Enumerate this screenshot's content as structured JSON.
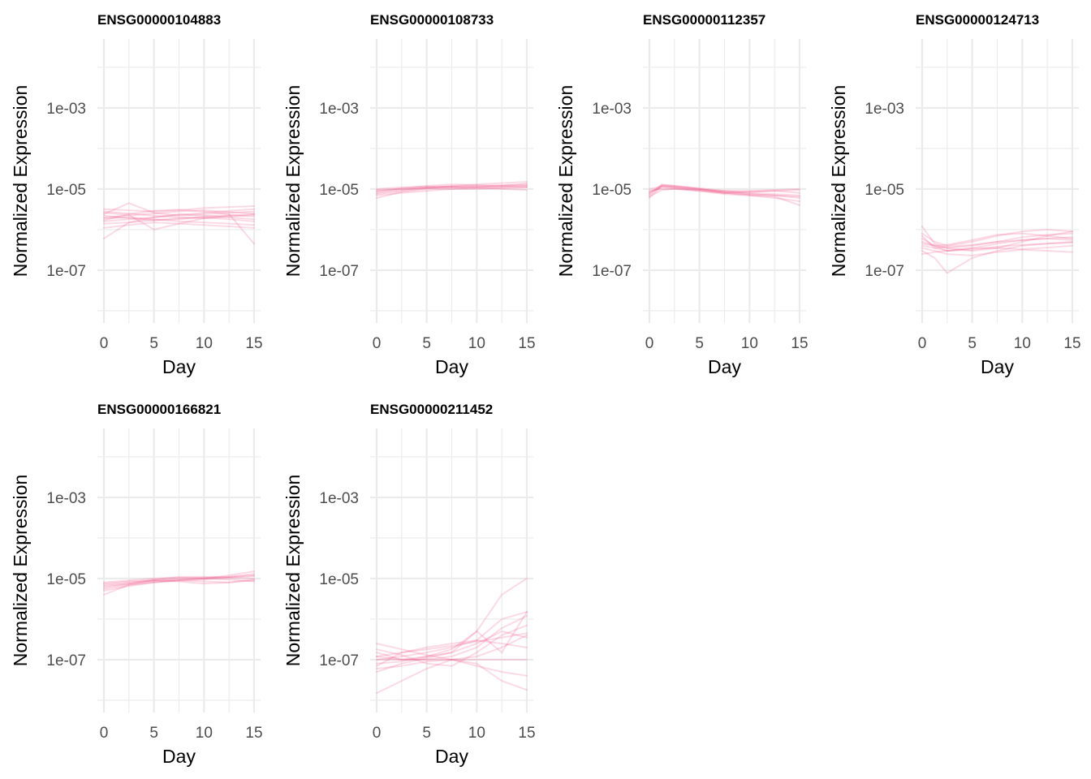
{
  "style": {
    "line_color": "#f0487f",
    "line_opacity": 0.2
  },
  "chart_data": [
    {
      "type": "line",
      "title": "ENSG00000104883",
      "xlabel": "Day",
      "ylabel": "Normalized Expression",
      "x_scale": "linear",
      "y_scale": "log10",
      "xlim": [
        0,
        15
      ],
      "ylim": [
        5e-09,
        0.05
      ],
      "x_ticks": [
        0,
        5,
        10,
        15
      ],
      "x_tick_labels": [
        "0",
        "5",
        "10",
        "15"
      ],
      "y_ticks": [
        1e-07,
        1e-05,
        0.001
      ],
      "y_tick_labels": [
        "1e-07",
        "1e-05",
        "1e-03"
      ],
      "x": [
        0,
        2.5,
        5,
        7.5,
        10,
        12.5,
        15
      ],
      "series": [
        {
          "values": [
            2e-06,
            2.2e-06,
            2.5e-06,
            2.8e-06,
            3e-06,
            2.7e-06,
            2.5e-06
          ]
        },
        {
          "values": [
            1.6e-06,
            1.8e-06,
            2e-06,
            2.3e-06,
            2.6e-06,
            2.9e-06,
            3.2e-06
          ]
        },
        {
          "values": [
            2.8e-06,
            2.5e-06,
            2.2e-06,
            2e-06,
            1.9e-06,
            2.1e-06,
            2.3e-06
          ]
        },
        {
          "values": [
            1.4e-06,
            1.5e-06,
            1.7e-06,
            1.9e-06,
            2e-06,
            1.8e-06,
            1.6e-06
          ]
        },
        {
          "values": [
            2.4e-06,
            4.5e-06,
            2.6e-06,
            2.2e-06,
            2.4e-06,
            2.6e-06,
            2.8e-06
          ]
        },
        {
          "values": [
            1.1e-06,
            1.3e-06,
            1.5e-06,
            1.4e-06,
            1.3e-06,
            1.2e-06,
            1.1e-06
          ]
        },
        {
          "values": [
            3.2e-06,
            3e-06,
            2.8e-06,
            3e-06,
            3.4e-06,
            3.6e-06,
            3.8e-06
          ]
        },
        {
          "values": [
            1.9e-06,
            2e-06,
            1.8e-06,
            1.6e-06,
            1.5e-06,
            1.4e-06,
            1.3e-06
          ]
        },
        {
          "values": [
            2.2e-06,
            1.9e-06,
            1.7e-06,
            1.8e-06,
            2.1e-06,
            2.3e-06,
            2.1e-06
          ]
        },
        {
          "values": [
            6e-07,
            1.5e-06,
            2e-06,
            2.4e-06,
            2.2e-06,
            2e-06,
            1.8e-06
          ]
        },
        {
          "values": [
            1.7e-06,
            2.4e-06,
            2.9e-06,
            3.1e-06,
            2.8e-06,
            2.4e-06,
            4.5e-07
          ]
        },
        {
          "values": [
            2.6e-06,
            2.3e-06,
            1e-06,
            1.4e-06,
            1.9e-06,
            2.2e-06,
            2.4e-06
          ]
        }
      ]
    },
    {
      "type": "line",
      "title": "ENSG00000108733",
      "xlabel": "Day",
      "ylabel": "Normalized Expression",
      "x_scale": "linear",
      "y_scale": "log10",
      "xlim": [
        0,
        15
      ],
      "ylim": [
        5e-09,
        0.05
      ],
      "x_ticks": [
        0,
        5,
        10,
        15
      ],
      "x_tick_labels": [
        "0",
        "5",
        "10",
        "15"
      ],
      "y_ticks": [
        1e-07,
        1e-05,
        0.001
      ],
      "y_tick_labels": [
        "1e-07",
        "1e-05",
        "1e-03"
      ],
      "x": [
        0,
        2.5,
        5,
        7.5,
        10,
        12.5,
        15
      ],
      "series": [
        {
          "values": [
            8e-06,
            9.5e-06,
            1.1e-05,
            1.15e-05,
            1.2e-05,
            1.25e-05,
            1.3e-05
          ]
        },
        {
          "values": [
            6e-06,
            8.5e-06,
            1e-05,
            1.1e-05,
            1.15e-05,
            1.2e-05,
            1.2e-05
          ]
        },
        {
          "values": [
            9e-06,
            1e-05,
            1.05e-05,
            1e-05,
            1e-05,
            1.05e-05,
            1.1e-05
          ]
        },
        {
          "values": [
            7.5e-06,
            9e-06,
            1.05e-05,
            1.2e-05,
            1.3e-05,
            1.4e-05,
            1.5e-05
          ]
        },
        {
          "values": [
            8.5e-06,
            1.05e-05,
            1.2e-05,
            1.3e-05,
            1.25e-05,
            1.15e-05,
            1.1e-05
          ]
        },
        {
          "values": [
            1e-05,
            1.1e-05,
            1.15e-05,
            1.1e-05,
            1.05e-05,
            1.1e-05,
            1.2e-05
          ]
        },
        {
          "values": [
            7e-06,
            8e-06,
            9e-06,
            1e-05,
            1.1e-05,
            1.2e-05,
            1.35e-05
          ]
        },
        {
          "values": [
            9.5e-06,
            1e-05,
            1.1e-05,
            1.15e-05,
            1.1e-05,
            1e-05,
            9.5e-06
          ]
        }
      ]
    },
    {
      "type": "line",
      "title": "ENSG00000112357",
      "xlabel": "Day",
      "ylabel": "Normalized Expression",
      "x_scale": "linear",
      "y_scale": "log10",
      "xlim": [
        0,
        15
      ],
      "ylim": [
        5e-09,
        0.05
      ],
      "x_ticks": [
        0,
        5,
        10,
        15
      ],
      "x_tick_labels": [
        "0",
        "5",
        "10",
        "15"
      ],
      "y_ticks": [
        1e-07,
        1e-05,
        0.001
      ],
      "y_tick_labels": [
        "1e-07",
        "1e-05",
        "1e-03"
      ],
      "x": [
        0,
        1.25,
        2.5,
        5,
        7.5,
        10,
        12.5,
        15
      ],
      "series": [
        {
          "values": [
            6e-06,
            1.2e-05,
            1.1e-05,
            9.5e-06,
            8e-06,
            7.5e-06,
            7e-06,
            6.5e-06
          ]
        },
        {
          "values": [
            7.5e-06,
            1.3e-05,
            1.2e-05,
            1e-05,
            8.5e-06,
            8.5e-06,
            9e-06,
            9.5e-06
          ]
        },
        {
          "values": [
            8.5e-06,
            1.1e-05,
            1.05e-05,
            9e-06,
            7.5e-06,
            7e-06,
            6e-06,
            5e-06
          ]
        },
        {
          "values": [
            9e-06,
            1e-05,
            1e-05,
            9.5e-06,
            9e-06,
            9e-06,
            9.5e-06,
            1e-05
          ]
        },
        {
          "values": [
            7e-06,
            1.2e-05,
            1.15e-05,
            1e-05,
            8e-06,
            7e-06,
            6.5e-06,
            4e-06
          ]
        },
        {
          "values": [
            8e-06,
            1.25e-05,
            1.2e-05,
            1.05e-05,
            9e-06,
            8e-06,
            7.5e-06,
            7e-06
          ]
        },
        {
          "values": [
            6.5e-06,
            9.5e-06,
            1e-05,
            9e-06,
            8e-06,
            8.5e-06,
            9e-06,
            8e-06
          ]
        },
        {
          "values": [
            1e-05,
            1.15e-05,
            1.1e-05,
            1e-05,
            8.5e-06,
            7.5e-06,
            7e-06,
            6e-06
          ]
        }
      ]
    },
    {
      "type": "line",
      "title": "ENSG00000124713",
      "xlabel": "Day",
      "ylabel": "Normalized Expression",
      "x_scale": "linear",
      "y_scale": "log10",
      "xlim": [
        0,
        15
      ],
      "ylim": [
        5e-09,
        0.05
      ],
      "x_ticks": [
        0,
        5,
        10,
        15
      ],
      "x_tick_labels": [
        "0",
        "5",
        "10",
        "15"
      ],
      "y_ticks": [
        1e-07,
        1e-05,
        0.001
      ],
      "y_tick_labels": [
        "1e-07",
        "1e-05",
        "1e-03"
      ],
      "x": [
        0,
        1.25,
        2.5,
        5,
        7.5,
        10,
        12.5,
        15
      ],
      "series": [
        {
          "values": [
            1.2e-06,
            4.5e-07,
            3.5e-07,
            4e-07,
            5e-07,
            6.5e-07,
            7.5e-07,
            8e-07
          ]
        },
        {
          "values": [
            6e-07,
            4e-07,
            3e-07,
            3.5e-07,
            4.5e-07,
            5.5e-07,
            6e-07,
            6.5e-07
          ]
        },
        {
          "values": [
            4e-07,
            3.5e-07,
            3e-07,
            3.2e-07,
            3.8e-07,
            4.2e-07,
            4.5e-07,
            5e-07
          ]
        },
        {
          "values": [
            3e-07,
            2e-07,
            8.5e-08,
            2e-07,
            3e-07,
            4e-07,
            4.5e-07,
            4.8e-07
          ]
        },
        {
          "values": [
            8e-07,
            5e-07,
            4e-07,
            5e-07,
            7e-07,
            9e-07,
            1e-06,
            9e-07
          ]
        },
        {
          "values": [
            2.5e-07,
            2.8e-07,
            3e-07,
            3.5e-07,
            3.5e-07,
            3.3e-07,
            3.6e-07,
            4e-07
          ]
        },
        {
          "values": [
            5e-07,
            4e-07,
            3.5e-07,
            3e-07,
            3.5e-07,
            5e-07,
            7e-07,
            9e-07
          ]
        },
        {
          "values": [
            3.5e-07,
            3e-07,
            2.5e-07,
            2.3e-07,
            2.8e-07,
            3.2e-07,
            3e-07,
            2.8e-07
          ]
        },
        {
          "values": [
            7e-07,
            3.5e-07,
            3.8e-07,
            4.2e-07,
            5e-07,
            5.5e-07,
            6e-07,
            5.5e-07
          ]
        },
        {
          "values": [
            4.5e-07,
            4e-07,
            4.2e-07,
            5.5e-07,
            7.5e-07,
            8e-07,
            7e-07,
            6e-07
          ]
        }
      ]
    },
    {
      "type": "line",
      "title": "ENSG00000166821",
      "xlabel": "Day",
      "ylabel": "Normalized Expression",
      "x_scale": "linear",
      "y_scale": "log10",
      "xlim": [
        0,
        15
      ],
      "ylim": [
        5e-09,
        0.05
      ],
      "x_ticks": [
        0,
        5,
        10,
        15
      ],
      "x_tick_labels": [
        "0",
        "5",
        "10",
        "15"
      ],
      "y_ticks": [
        1e-07,
        1e-05,
        0.001
      ],
      "y_tick_labels": [
        "1e-07",
        "1e-05",
        "1e-03"
      ],
      "x": [
        0,
        2.5,
        5,
        7.5,
        10,
        12.5,
        15
      ],
      "series": [
        {
          "values": [
            6e-06,
            7.5e-06,
            8.5e-06,
            9e-06,
            9.5e-06,
            1.05e-05,
            1.15e-05
          ]
        },
        {
          "values": [
            4e-06,
            7e-06,
            9e-06,
            1e-05,
            1.05e-05,
            1.1e-05,
            1.2e-05
          ]
        },
        {
          "values": [
            7e-06,
            8e-06,
            9e-06,
            9.5e-06,
            1e-05,
            1.1e-05,
            1.3e-05
          ]
        },
        {
          "values": [
            5e-06,
            6.5e-06,
            8e-06,
            9e-06,
            8.5e-06,
            8e-06,
            9e-06
          ]
        },
        {
          "values": [
            6.5e-06,
            7.5e-06,
            9.5e-06,
            1.1e-05,
            1.1e-05,
            1.05e-05,
            1e-05
          ]
        },
        {
          "values": [
            7.5e-06,
            8.5e-06,
            9e-06,
            8.5e-06,
            7.5e-06,
            8e-06,
            9.5e-06
          ]
        },
        {
          "values": [
            5.5e-06,
            7e-06,
            8e-06,
            9e-06,
            1e-05,
            1.2e-05,
            1.5e-05
          ]
        },
        {
          "values": [
            8e-06,
            9e-06,
            1e-05,
            1.05e-05,
            1e-05,
            9.5e-06,
            8.5e-06
          ]
        }
      ]
    },
    {
      "type": "line",
      "title": "ENSG00000211452",
      "xlabel": "Day",
      "ylabel": "Normalized Expression",
      "x_scale": "linear",
      "y_scale": "log10",
      "xlim": [
        0,
        15
      ],
      "ylim": [
        5e-09,
        0.05
      ],
      "x_ticks": [
        0,
        5,
        10,
        15
      ],
      "x_tick_labels": [
        "0",
        "5",
        "10",
        "15"
      ],
      "y_ticks": [
        1e-07,
        1e-05,
        0.001
      ],
      "y_tick_labels": [
        "1e-07",
        "1e-05",
        "1e-03"
      ],
      "x": [
        0,
        2.5,
        5,
        7.5,
        10,
        12.5,
        15
      ],
      "series": [
        {
          "values": [
            1.2e-07,
            1e-07,
            1.2e-07,
            1.8e-07,
            5e-07,
            4e-06,
            1e-05
          ]
        },
        {
          "values": [
            1e-07,
            1.2e-07,
            1.5e-07,
            2e-07,
            3e-07,
            1e-06,
            1.5e-06
          ]
        },
        {
          "values": [
            7e-08,
            1.5e-07,
            2e-07,
            2.5e-07,
            3e-07,
            2.5e-07,
            2e-07
          ]
        },
        {
          "values": [
            1.5e-07,
            1e-07,
            1e-07,
            1.2e-07,
            2e-07,
            6e-07,
            1.2e-06
          ]
        },
        {
          "values": [
            1e-07,
            1e-07,
            1e-07,
            1e-07,
            1e-07,
            1e-07,
            1e-07
          ]
        },
        {
          "values": [
            5e-08,
            8e-08,
            1.1e-07,
            1.5e-07,
            2.5e-07,
            5e-07,
            3.5e-07
          ]
        },
        {
          "values": [
            1.5e-08,
            3e-08,
            6e-08,
            1e-07,
            8e-08,
            3e-08,
            1.8e-08
          ]
        },
        {
          "values": [
            1.8e-07,
            1.3e-07,
            8e-08,
            7e-08,
            1.5e-07,
            4e-07,
            7e-07
          ]
        },
        {
          "values": [
            1.2e-07,
            1.5e-07,
            1.8e-07,
            2.2e-07,
            2.8e-07,
            3.5e-07,
            4.5e-07
          ]
        },
        {
          "values": [
            2.5e-07,
            1.8e-07,
            1.3e-07,
            1e-07,
            1.2e-07,
            2e-07,
            4e-07
          ]
        },
        {
          "values": [
            8e-08,
            9e-08,
            1.2e-07,
            1.5e-07,
            5e-07,
            1.5e-07,
            1.5e-06
          ]
        },
        {
          "values": [
            6e-08,
            7e-08,
            9e-08,
            1e-07,
            7e-08,
            5e-08,
            4e-08
          ]
        }
      ]
    }
  ]
}
